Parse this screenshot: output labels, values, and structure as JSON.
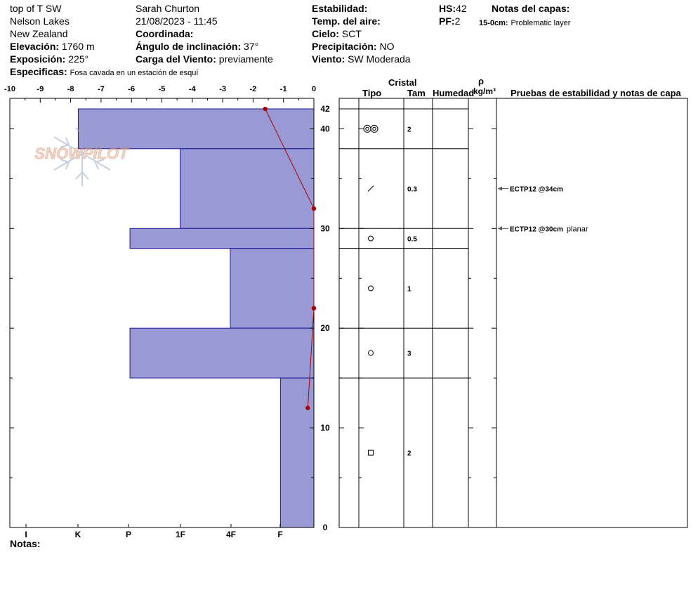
{
  "header": {
    "site": "top of T SW",
    "area": "Nelson Lakes",
    "country": "New Zealand",
    "elevation_label": "Elevación:",
    "elevation_value": "1760 m",
    "exposure_label": "Exposición:",
    "exposure_value": "225°",
    "specifics_label": "Especificas:",
    "specifics_value": "Fosa cavada en un estación de esquí",
    "observer": "Sarah Churton",
    "datetime": "21/08/2023 - 11:45",
    "coord_label": "Coordinada:",
    "slope_label": "Ángulo de inclinación:",
    "slope_value": "37°",
    "windload_label": "Carga del Viento:",
    "windload_value": "previamente",
    "stability_label": "Estabilidad:",
    "airtemp_label": "Temp. del aire:",
    "sky_label": "Cielo:",
    "sky_value": "SCT",
    "precip_label": "Precipitación:",
    "precip_value": "NO",
    "wind_label": "Viento:",
    "wind_value": "SW Moderada",
    "hs_label": "HS:",
    "hs_value": "42",
    "pf_label": "PF:",
    "pf_value": "2",
    "layer_notes_label": "Notas del capas:",
    "layer_note_range": "15-0cm:",
    "layer_note_text": "Problematic layer"
  },
  "watermark": "SNOWPILOT",
  "footer": {
    "notes_label": "Notas:"
  },
  "table_headers": {
    "cristal": "Cristal",
    "tipo": "Tipo",
    "tam": "Tam",
    "humedad": "Humedad",
    "rho": "ρ",
    "density_unit": "kg/m³",
    "tests": "Pruebas de estabilidad y notas de capa"
  },
  "temp_axis": {
    "ticks": [
      "-10",
      "-9",
      "-8",
      "-7",
      "-6",
      "-5",
      "-4",
      "-3",
      "-2",
      "-1",
      "0"
    ],
    "min": -10,
    "max": 0
  },
  "hardness_axis": {
    "labels": [
      "I",
      "K",
      "P",
      "1F",
      "4F",
      "F"
    ]
  },
  "depth_axis": {
    "min": 0,
    "max": 44,
    "labels": [
      "0",
      "10",
      "20",
      "30",
      "40",
      "42"
    ]
  },
  "layers": [
    {
      "top": 42,
      "bottom": 38,
      "hardness_temp": -7.75,
      "crystal": "rounded-pair",
      "size": "2"
    },
    {
      "top": 38,
      "bottom": 30,
      "hardness_temp": -4.4,
      "crystal": "slash",
      "size": "0.3"
    },
    {
      "top": 30,
      "bottom": 28,
      "hardness_temp": -6.05,
      "crystal": "circle",
      "size": "0.5"
    },
    {
      "top": 28,
      "bottom": 20,
      "hardness_temp": -2.75,
      "crystal": "circle",
      "size": "1"
    },
    {
      "top": 20,
      "bottom": 15,
      "hardness_temp": -6.05,
      "crystal": "circle",
      "size": "3"
    },
    {
      "top": 15,
      "bottom": 0,
      "hardness_temp": -1.1,
      "crystal": "square",
      "size": "2"
    }
  ],
  "temperature_profile": [
    {
      "depth": 42,
      "temp": -1.6
    },
    {
      "depth": 32,
      "temp": 0
    },
    {
      "depth": 22,
      "temp": 0
    },
    {
      "depth": 12,
      "temp": -0.2
    }
  ],
  "stability_tests": [
    {
      "depth": 34,
      "result": "ECTP12 @34cm",
      "note": ""
    },
    {
      "depth": 30,
      "result": "ECTP12 @30cm",
      "note": "planar"
    }
  ],
  "colors": {
    "layer_fill": "#9999d6",
    "layer_stroke": "#1a1a9a",
    "temp_line": "#aa0000"
  }
}
